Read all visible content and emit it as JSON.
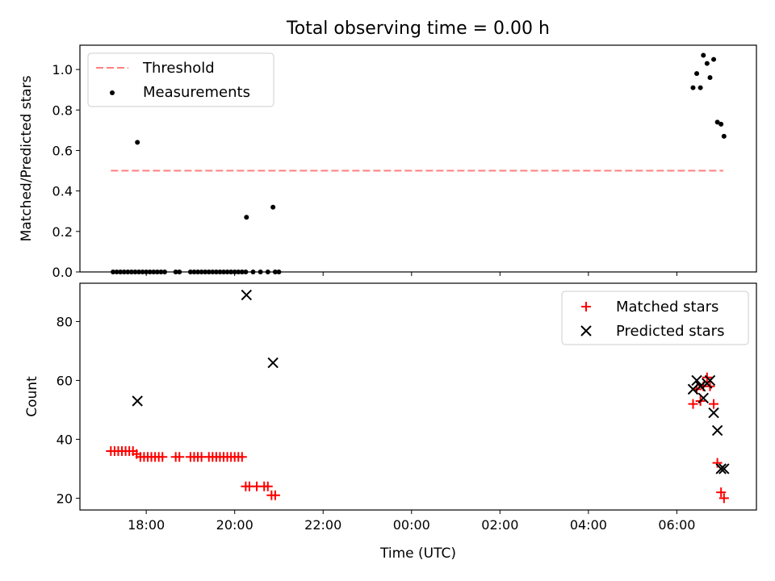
{
  "chart_data": [
    {
      "type": "scatter",
      "title": "Total observing time = 0.00 h",
      "xlabel": "",
      "ylabel": "Matched/Predicted stars",
      "xlim_hours": [
        16.5,
        7.8
      ],
      "ylim": [
        0.0,
        1.12
      ],
      "yticks": [
        0.0,
        0.2,
        0.4,
        0.6,
        0.8,
        1.0
      ],
      "ytick_labels": [
        "0.0",
        "0.2",
        "0.4",
        "0.6",
        "0.8",
        "1.0"
      ],
      "xticks_hours": [
        18,
        20,
        22,
        0,
        2,
        4,
        6
      ],
      "show_xtick_labels": false,
      "grid": false,
      "legend_position": "upper-left",
      "threshold": {
        "name": "Threshold",
        "value": 0.5,
        "x_start": "17:12",
        "x_end": "07:03",
        "color": "#ff7f7f",
        "style": "dashed"
      },
      "series": [
        {
          "name": "Measurements",
          "color": "#000000",
          "marker": "dot",
          "points": [
            [
              "17:15",
              0.0
            ],
            [
              "17:20",
              0.0
            ],
            [
              "17:25",
              0.0
            ],
            [
              "17:30",
              0.0
            ],
            [
              "17:35",
              0.0
            ],
            [
              "17:40",
              0.0
            ],
            [
              "17:45",
              0.0
            ],
            [
              "17:48",
              0.64
            ],
            [
              "17:50",
              0.0
            ],
            [
              "17:55",
              0.0
            ],
            [
              "18:00",
              0.0
            ],
            [
              "18:05",
              0.0
            ],
            [
              "18:10",
              0.0
            ],
            [
              "18:15",
              0.0
            ],
            [
              "18:20",
              0.0
            ],
            [
              "18:25",
              0.0
            ],
            [
              "18:40",
              0.0
            ],
            [
              "18:45",
              0.0
            ],
            [
              "19:00",
              0.0
            ],
            [
              "19:05",
              0.0
            ],
            [
              "19:10",
              0.0
            ],
            [
              "19:15",
              0.0
            ],
            [
              "19:20",
              0.0
            ],
            [
              "19:25",
              0.0
            ],
            [
              "19:30",
              0.0
            ],
            [
              "19:35",
              0.0
            ],
            [
              "19:40",
              0.0
            ],
            [
              "19:45",
              0.0
            ],
            [
              "19:50",
              0.0
            ],
            [
              "19:55",
              0.0
            ],
            [
              "20:00",
              0.0
            ],
            [
              "20:05",
              0.0
            ],
            [
              "20:10",
              0.0
            ],
            [
              "20:15",
              0.0
            ],
            [
              "20:16",
              0.27
            ],
            [
              "20:25",
              0.0
            ],
            [
              "20:35",
              0.0
            ],
            [
              "20:45",
              0.0
            ],
            [
              "20:52",
              0.32
            ],
            [
              "20:55",
              0.0
            ],
            [
              "21:00",
              0.0
            ],
            [
              "06:22",
              0.91
            ],
            [
              "06:27",
              0.98
            ],
            [
              "06:32",
              0.91
            ],
            [
              "06:36",
              1.07
            ],
            [
              "06:41",
              1.03
            ],
            [
              "06:45",
              0.96
            ],
            [
              "06:50",
              1.05
            ],
            [
              "06:55",
              0.74
            ],
            [
              "07:00",
              0.73
            ],
            [
              "07:04",
              0.67
            ]
          ]
        }
      ]
    },
    {
      "type": "scatter",
      "title": "",
      "xlabel": "Time (UTC)",
      "ylabel": "Count",
      "xlim_hours": [
        16.5,
        7.8
      ],
      "ylim": [
        16,
        93
      ],
      "yticks": [
        20,
        40,
        60,
        80
      ],
      "ytick_labels": [
        "20",
        "40",
        "60",
        "80"
      ],
      "xticks_hours": [
        18,
        20,
        22,
        0,
        2,
        4,
        6
      ],
      "xtick_labels": [
        "18:00",
        "20:00",
        "22:00",
        "00:00",
        "02:00",
        "04:00",
        "06:00"
      ],
      "grid": false,
      "legend_position": "upper-right",
      "series": [
        {
          "name": "Matched stars",
          "color": "#ff0000",
          "marker": "plus",
          "points": [
            [
              "17:12",
              36
            ],
            [
              "17:17",
              36
            ],
            [
              "17:22",
              36
            ],
            [
              "17:27",
              36
            ],
            [
              "17:32",
              36
            ],
            [
              "17:37",
              36
            ],
            [
              "17:42",
              36
            ],
            [
              "17:47",
              35
            ],
            [
              "17:52",
              34
            ],
            [
              "17:57",
              34
            ],
            [
              "18:02",
              34
            ],
            [
              "18:07",
              34
            ],
            [
              "18:12",
              34
            ],
            [
              "18:17",
              34
            ],
            [
              "18:22",
              34
            ],
            [
              "18:40",
              34
            ],
            [
              "18:45",
              34
            ],
            [
              "19:00",
              34
            ],
            [
              "19:05",
              34
            ],
            [
              "19:10",
              34
            ],
            [
              "19:15",
              34
            ],
            [
              "19:25",
              34
            ],
            [
              "19:30",
              34
            ],
            [
              "19:35",
              34
            ],
            [
              "19:40",
              34
            ],
            [
              "19:45",
              34
            ],
            [
              "19:50",
              34
            ],
            [
              "19:55",
              34
            ],
            [
              "20:00",
              34
            ],
            [
              "20:05",
              34
            ],
            [
              "20:10",
              34
            ],
            [
              "20:15",
              24
            ],
            [
              "20:20",
              24
            ],
            [
              "20:30",
              24
            ],
            [
              "20:40",
              24
            ],
            [
              "20:45",
              24
            ],
            [
              "20:50",
              21
            ],
            [
              "20:55",
              21
            ],
            [
              "06:22",
              52
            ],
            [
              "06:27",
              57
            ],
            [
              "06:32",
              53
            ],
            [
              "06:36",
              58
            ],
            [
              "06:41",
              61
            ],
            [
              "06:45",
              58
            ],
            [
              "06:50",
              52
            ],
            [
              "06:55",
              32
            ],
            [
              "07:00",
              22
            ],
            [
              "07:04",
              20
            ]
          ]
        },
        {
          "name": "Predicted stars",
          "color": "#000000",
          "marker": "x",
          "points": [
            [
              "17:48",
              53
            ],
            [
              "20:16",
              89
            ],
            [
              "20:52",
              66
            ],
            [
              "06:22",
              57
            ],
            [
              "06:27",
              60
            ],
            [
              "06:32",
              58
            ],
            [
              "06:36",
              54
            ],
            [
              "06:41",
              59
            ],
            [
              "06:45",
              60
            ],
            [
              "06:50",
              49
            ],
            [
              "06:55",
              43
            ],
            [
              "07:00",
              30
            ],
            [
              "07:04",
              30
            ]
          ]
        }
      ]
    }
  ]
}
